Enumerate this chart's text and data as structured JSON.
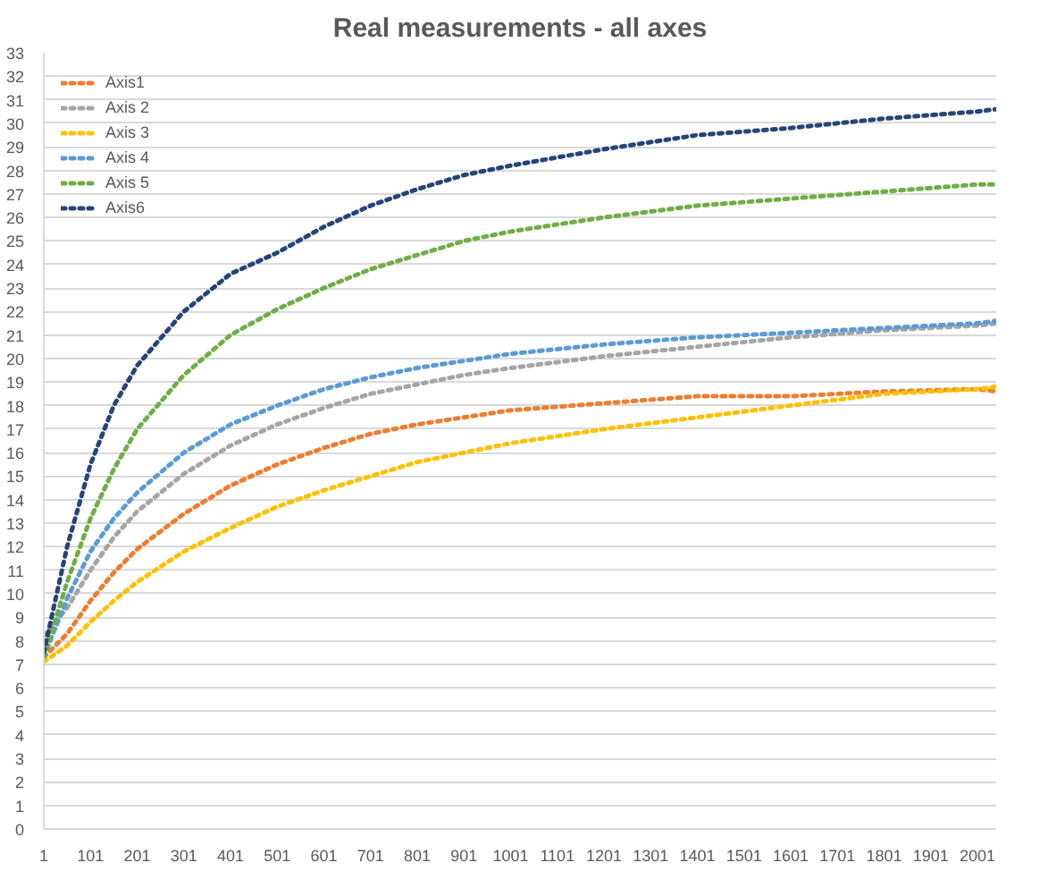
{
  "chart_data": {
    "type": "line",
    "title": "Real measurements - all axes",
    "x": [
      1,
      51,
      101,
      151,
      201,
      301,
      401,
      501,
      601,
      701,
      801,
      901,
      1001,
      1201,
      1401,
      1601,
      1801,
      2001,
      2041
    ],
    "series": [
      {
        "name": "Axis1",
        "color": "#ed7d31",
        "values": [
          7.3,
          8.3,
          9.7,
          10.9,
          11.9,
          13.4,
          14.6,
          15.5,
          16.2,
          16.8,
          17.2,
          17.5,
          17.8,
          18.1,
          18.4,
          18.4,
          18.6,
          18.7,
          18.6
        ]
      },
      {
        "name": "Axis 2",
        "color": "#a5a5a5",
        "values": [
          8.2,
          9.4,
          11,
          12.4,
          13.5,
          15.1,
          16.3,
          17.2,
          17.9,
          18.5,
          18.9,
          19.3,
          19.6,
          20.1,
          20.5,
          20.9,
          21.2,
          21.4,
          21.5
        ]
      },
      {
        "name": "Axis 3",
        "color": "#ffc000",
        "values": [
          7.1,
          7.8,
          8.8,
          9.7,
          10.5,
          11.8,
          12.8,
          13.7,
          14.4,
          15.0,
          15.6,
          16.0,
          16.4,
          17.0,
          17.5,
          18.0,
          18.5,
          18.7,
          18.8
        ]
      },
      {
        "name": "Axis 4",
        "color": "#5b9bd5",
        "values": [
          7.3,
          9.8,
          11.8,
          13.2,
          14.3,
          16,
          17.2,
          18,
          18.7,
          19.2,
          19.6,
          19.9,
          20.2,
          20.6,
          20.9,
          21.1,
          21.3,
          21.5,
          21.6
        ]
      },
      {
        "name": "Axis 5",
        "color": "#70ad47",
        "values": [
          7.3,
          10.5,
          13.2,
          15.3,
          17,
          19.3,
          21,
          22.1,
          23,
          23.8,
          24.4,
          25,
          25.4,
          26,
          26.5,
          26.8,
          27.1,
          27.4,
          27.4
        ]
      },
      {
        "name": "Axis6",
        "color": "#264478",
        "values": [
          7.5,
          12,
          15.5,
          18,
          19.7,
          22,
          23.6,
          24.5,
          25.6,
          26.5,
          27.2,
          27.8,
          28.2,
          28.9,
          29.5,
          29.8,
          30.2,
          30.5,
          30.6
        ]
      }
    ],
    "xlim": [
      1,
      2041
    ],
    "xticks": [
      1,
      101,
      201,
      301,
      401,
      501,
      601,
      701,
      801,
      901,
      1001,
      1101,
      1201,
      1301,
      1401,
      1501,
      1601,
      1701,
      1801,
      1901,
      2001
    ],
    "ylim": [
      0,
      33
    ],
    "yticks": [
      0,
      1,
      2,
      3,
      4,
      5,
      6,
      7,
      8,
      9,
      10,
      11,
      12,
      13,
      14,
      15,
      16,
      17,
      18,
      19,
      20,
      21,
      22,
      23,
      24,
      25,
      26,
      27,
      28,
      29,
      30,
      31,
      32,
      33
    ],
    "grid": "y",
    "legend": "top left",
    "line_style": "dotted",
    "marker": "none"
  }
}
